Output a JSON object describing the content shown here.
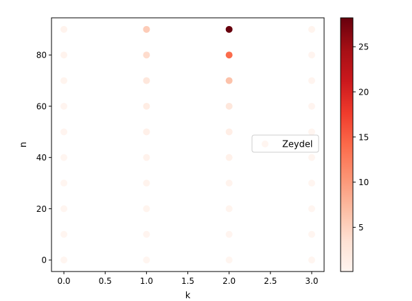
{
  "chart_data": {
    "type": "scatter",
    "xlabel": "k",
    "ylabel": "n",
    "xlim": [
      -0.15,
      3.15
    ],
    "ylim": [
      -4.5,
      94.5
    ],
    "xticks": [
      "0.0",
      "0.5",
      "1.0",
      "1.5",
      "2.0",
      "2.5",
      "3.0"
    ],
    "yticks": [
      "0",
      "20",
      "40",
      "60",
      "80"
    ],
    "colormap": "Reds",
    "colorbar": {
      "range": [
        0.1,
        28.2
      ],
      "ticks": [
        "5",
        "10",
        "15",
        "20",
        "25"
      ]
    },
    "legend": {
      "placement": "center-right",
      "label": "Zeydel"
    },
    "grid": false,
    "points": [
      {
        "k": 0,
        "n": 0,
        "c": 0.1
      },
      {
        "k": 0,
        "n": 10,
        "c": 0.1
      },
      {
        "k": 0,
        "n": 20,
        "c": 0.1
      },
      {
        "k": 0,
        "n": 30,
        "c": 0.1
      },
      {
        "k": 0,
        "n": 40,
        "c": 0.1
      },
      {
        "k": 0,
        "n": 50,
        "c": 0.2
      },
      {
        "k": 0,
        "n": 60,
        "c": 0.2
      },
      {
        "k": 0,
        "n": 70,
        "c": 0.3
      },
      {
        "k": 0,
        "n": 80,
        "c": 0.4
      },
      {
        "k": 0,
        "n": 90,
        "c": 0.5
      },
      {
        "k": 1,
        "n": 0,
        "c": 0.1
      },
      {
        "k": 1,
        "n": 10,
        "c": 0.2
      },
      {
        "k": 1,
        "n": 20,
        "c": 0.3
      },
      {
        "k": 1,
        "n": 30,
        "c": 0.4
      },
      {
        "k": 1,
        "n": 40,
        "c": 0.6
      },
      {
        "k": 1,
        "n": 50,
        "c": 0.9
      },
      {
        "k": 1,
        "n": 60,
        "c": 1.5
      },
      {
        "k": 1,
        "n": 70,
        "c": 2.5
      },
      {
        "k": 1,
        "n": 80,
        "c": 4.0
      },
      {
        "k": 1,
        "n": 90,
        "c": 5.5
      },
      {
        "k": 2,
        "n": 0,
        "c": 0.1
      },
      {
        "k": 2,
        "n": 10,
        "c": 0.2
      },
      {
        "k": 2,
        "n": 20,
        "c": 0.3
      },
      {
        "k": 2,
        "n": 30,
        "c": 0.5
      },
      {
        "k": 2,
        "n": 40,
        "c": 0.8
      },
      {
        "k": 2,
        "n": 50,
        "c": 1.3
      },
      {
        "k": 2,
        "n": 60,
        "c": 2.5
      },
      {
        "k": 2,
        "n": 70,
        "c": 6.5
      },
      {
        "k": 2,
        "n": 80,
        "c": 14.0
      },
      {
        "k": 2,
        "n": 90,
        "c": 28.2
      },
      {
        "k": 3,
        "n": 0,
        "c": 0.1
      },
      {
        "k": 3,
        "n": 10,
        "c": 0.1
      },
      {
        "k": 3,
        "n": 20,
        "c": 0.1
      },
      {
        "k": 3,
        "n": 30,
        "c": 0.1
      },
      {
        "k": 3,
        "n": 40,
        "c": 0.1
      },
      {
        "k": 3,
        "n": 50,
        "c": 0.1
      },
      {
        "k": 3,
        "n": 60,
        "c": 0.2
      },
      {
        "k": 3,
        "n": 70,
        "c": 0.2
      },
      {
        "k": 3,
        "n": 80,
        "c": 0.2
      },
      {
        "k": 3,
        "n": 90,
        "c": 0.3
      }
    ]
  }
}
